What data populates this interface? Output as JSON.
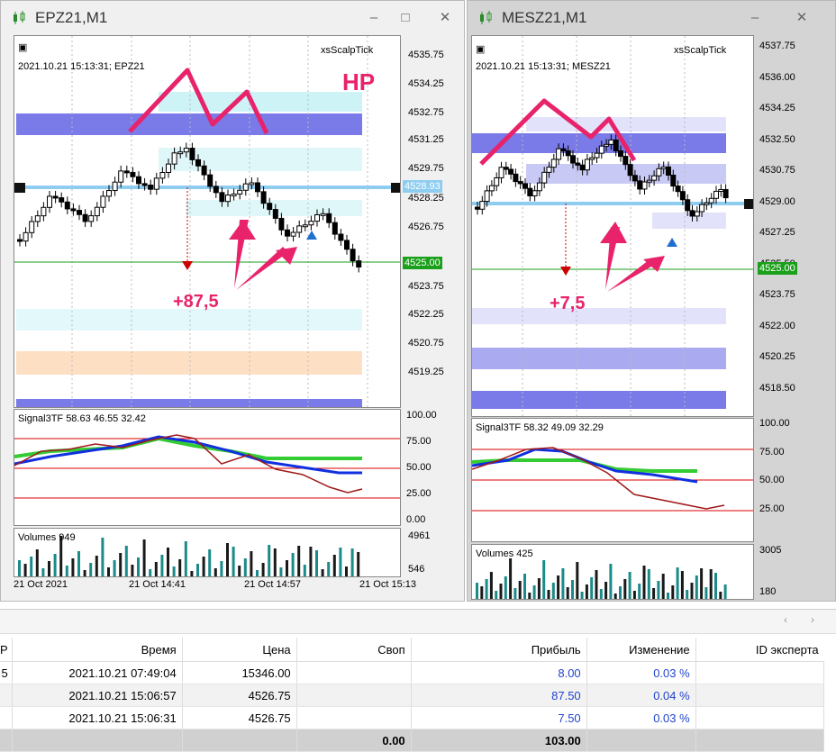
{
  "windows": [
    {
      "title": "EPZ21,M1",
      "info": "2021.10.21 15:13:31; EPZ21",
      "indicator": "xsScalpTick",
      "price_axis": [
        "4535.75",
        "4534.25",
        "4532.75",
        "4531.25",
        "4529.75",
        "4528.25",
        "4526.75",
        "4523.75",
        "4522.25",
        "4520.75",
        "4519.25"
      ],
      "current_price": "4528.93",
      "bid_price": "4525.00",
      "annotation": "+87,5",
      "label_hp": "НР",
      "signal_label": "Signal3TF 58.63 46.55 32.42",
      "signal_axis": [
        "100.00",
        "75.00",
        "50.00",
        "25.00",
        "0.00"
      ],
      "volume_label": "Volumes 949",
      "volume_axis": [
        "4961",
        "546"
      ],
      "time_axis": [
        "21 Oct 2021",
        "21 Oct 14:41",
        "21 Oct 14:57",
        "21 Oct 15:13"
      ]
    },
    {
      "title": "MESZ21,M1",
      "info": "2021.10.21 15:13:31; MESZ21",
      "indicator": "xsScalpTick",
      "price_axis": [
        "4537.75",
        "4536.00",
        "4534.25",
        "4532.50",
        "4530.75",
        "4529.00",
        "4527.25",
        "4525.50",
        "4523.75",
        "4522.00",
        "4520.25",
        "4518.50"
      ],
      "bid_price": "4525.00",
      "annotation": "+7,5",
      "signal_label": "Signal3TF 58.32 49.09 32.29",
      "signal_axis": [
        "100.00",
        "75.00",
        "50.00",
        "25.00"
      ],
      "volume_label": "Volumes 425",
      "volume_axis": [
        "3005",
        "180"
      ]
    }
  ],
  "table": {
    "columns": [
      "P",
      "Время",
      "Цена",
      "Своп",
      "Прибыль",
      "Изменение",
      "ID эксперта"
    ],
    "rows": [
      {
        "p": "5",
        "time": "2021.10.21 07:49:04",
        "price": "15346.00",
        "swap": "",
        "profit": "8.00",
        "change": "0.03 %",
        "id": ""
      },
      {
        "p": "",
        "time": "2021.10.21 15:06:57",
        "price": "4526.75",
        "swap": "",
        "profit": "87.50",
        "change": "0.04 %",
        "id": ""
      },
      {
        "p": "",
        "time": "2021.10.21 15:06:31",
        "price": "4526.75",
        "swap": "",
        "profit": "7.50",
        "change": "0.03 %",
        "id": ""
      }
    ],
    "total": {
      "swap": "0.00",
      "profit": "103.00"
    }
  },
  "colors": {
    "annotation": "#e8236b",
    "bid_green": "#1aa01a",
    "level_blue": "#7c7ce6",
    "signal_green": "#33cc33"
  }
}
